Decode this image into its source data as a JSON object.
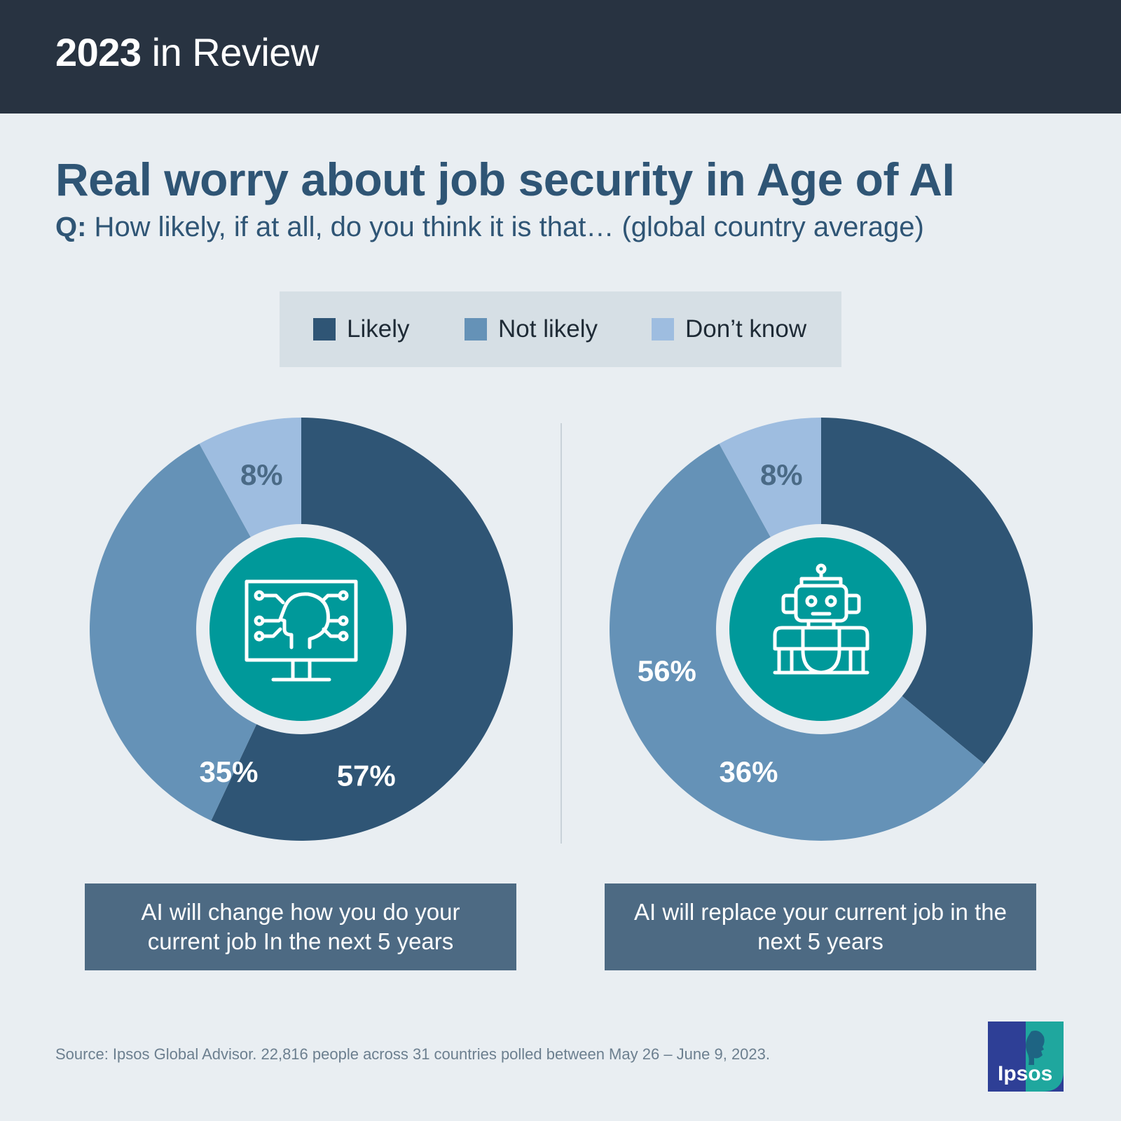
{
  "banner": {
    "year": "2023",
    "rest": " in Review"
  },
  "headline": "Real worry about job security in Age of AI",
  "question": {
    "prefix": "Q:",
    "text": " How likely, if at all, do you think it is that… (global country average)"
  },
  "legend": [
    {
      "label": "Likely",
      "color": "#2f5575"
    },
    {
      "label": "Not likely",
      "color": "#6592b7"
    },
    {
      "label": "Don’t know",
      "color": "#9ebde0"
    }
  ],
  "colors": {
    "center": "#00999a",
    "ring": "#e9eef2",
    "caption_bg": "#4d6a83"
  },
  "chart_data": [
    {
      "type": "pie",
      "categories": [
        "Likely",
        "Not likely",
        "Don’t know"
      ],
      "values": [
        57,
        35,
        8
      ],
      "labels": [
        "57%",
        "35%",
        "8%"
      ],
      "label_colors": [
        "#ffffff",
        "#ffffff",
        "#4a6a86"
      ],
      "caption": "AI will change how you do your current job In the next 5 years",
      "icon": "computer-head-icon"
    },
    {
      "type": "pie",
      "categories": [
        "Likely",
        "Not likely",
        "Don’t know"
      ],
      "values": [
        36,
        56,
        8
      ],
      "labels": [
        "36%",
        "56%",
        "8%"
      ],
      "label_colors": [
        "#ffffff",
        "#ffffff",
        "#4a6a86"
      ],
      "caption": "AI will replace your current job in the next 5 years",
      "icon": "robot-icon"
    }
  ],
  "source": "Source: Ipsos Global Advisor. 22,816 people across 31 countries polled between May 26 – June 9, 2023.",
  "logo": {
    "text": "Ipsos"
  }
}
